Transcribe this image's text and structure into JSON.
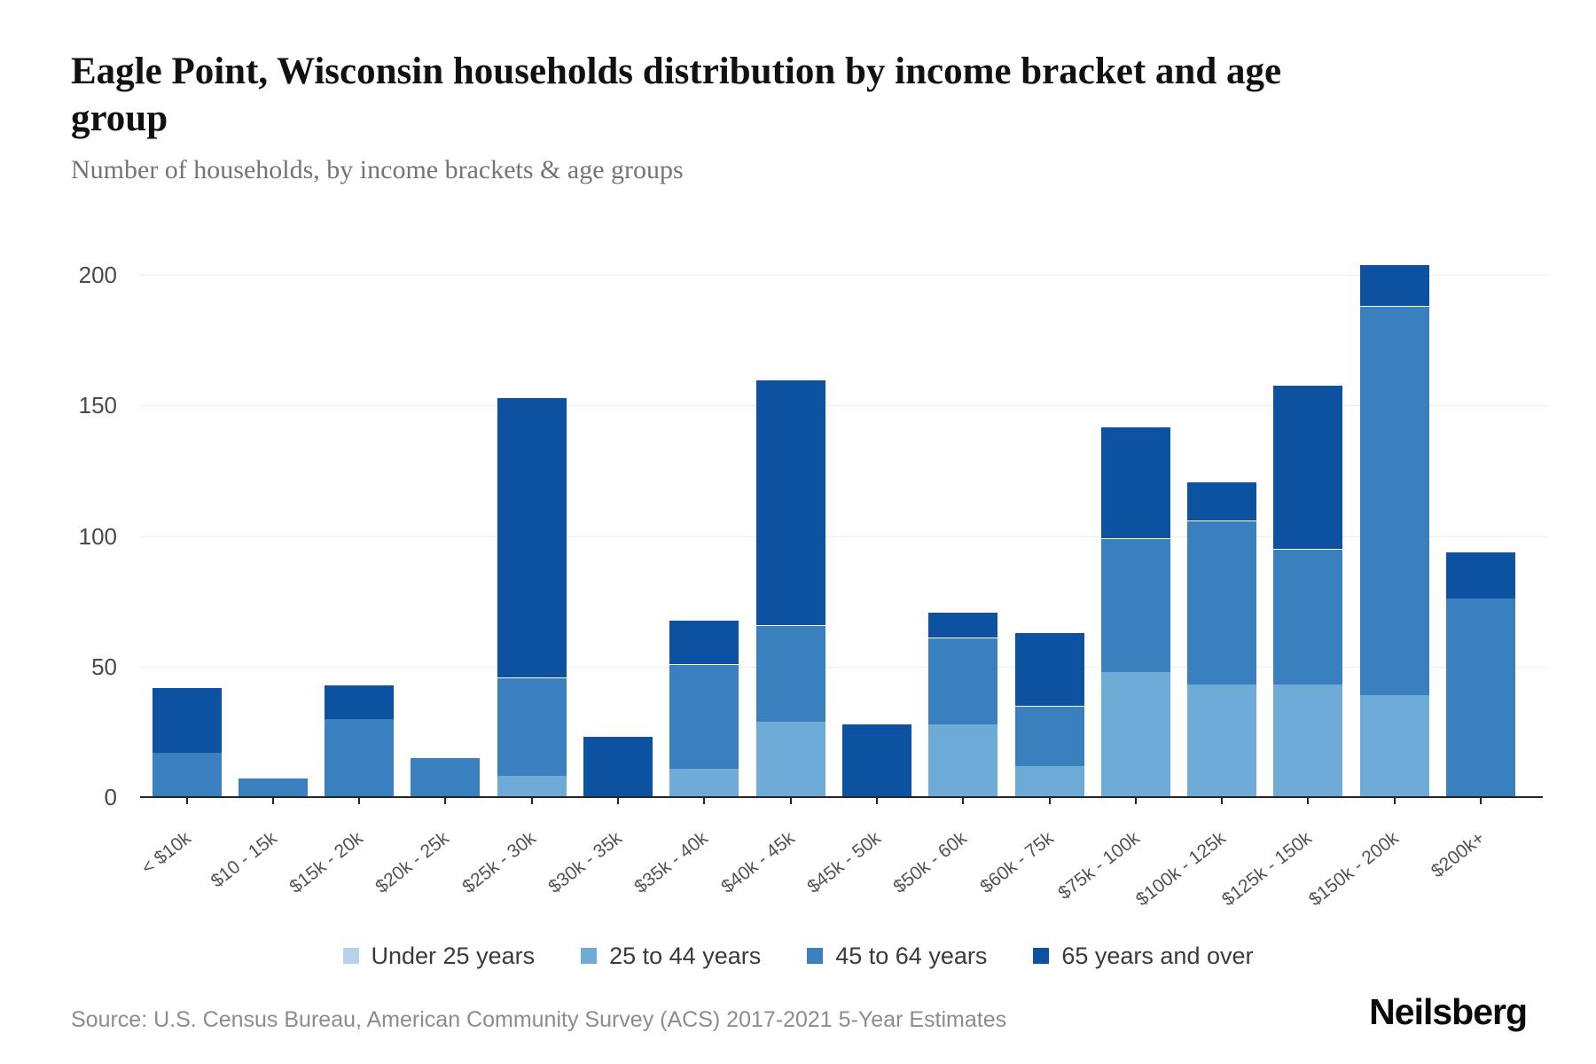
{
  "title": "Eagle Point, Wisconsin households distribution by income bracket and age group",
  "subtitle": "Number of households, by income brackets & age groups",
  "source": "Source: U.S. Census Bureau, American Community Survey (ACS) 2017-2021 5-Year Estimates",
  "brand": "Neilsberg",
  "colors": {
    "axis": "#252525",
    "gridline": "#ececec",
    "under_25": "#b7d3e9",
    "age_25_44": "#6fabd7",
    "age_45_64": "#3a80bf",
    "age_65_over": "#0d51a1"
  },
  "chart_data": {
    "type": "bar",
    "stacked": true,
    "title": "Eagle Point, Wisconsin households distribution by income bracket and age group",
    "xlabel": "",
    "ylabel": "Number of households",
    "ylim": [
      0,
      200
    ],
    "yticks": [
      0,
      50,
      100,
      150,
      200
    ],
    "grid": true,
    "legend_position": "bottom",
    "categories": [
      "< $10k",
      "$10 - 15k",
      "$15k - 20k",
      "$20k - 25k",
      "$25k - 30k",
      "$30k - 35k",
      "$35k - 40k",
      "$40k - 45k",
      "$45k - 50k",
      "$50k - 60k",
      "$60k - 75k",
      "$75k - 100k",
      "$100k - 125k",
      "$125k - 150k",
      "$150k - 200k",
      "$200k+"
    ],
    "series": [
      {
        "name": "Under 25 years",
        "color": "#b7d3e9",
        "values": [
          0,
          0,
          0,
          0,
          0,
          0,
          0,
          0,
          0,
          0,
          0,
          0,
          0,
          0,
          0,
          0
        ]
      },
      {
        "name": "25 to 44 years",
        "color": "#6fabd7",
        "values": [
          0,
          0,
          0,
          0,
          8,
          0,
          11,
          29,
          0,
          28,
          12,
          48,
          43,
          43,
          39,
          0
        ]
      },
      {
        "name": "45 to 64 years",
        "color": "#3a80bf",
        "values": [
          17,
          7,
          30,
          15,
          38,
          0,
          40,
          37,
          0,
          33,
          23,
          51,
          63,
          52,
          149,
          76
        ]
      },
      {
        "name": "65 years and over",
        "color": "#0d51a1",
        "values": [
          25,
          0,
          13,
          0,
          107,
          23,
          17,
          94,
          28,
          10,
          28,
          43,
          15,
          63,
          16,
          18
        ]
      }
    ],
    "totals": [
      42,
      7,
      43,
      15,
      153,
      23,
      68,
      160,
      28,
      71,
      63,
      142,
      121,
      158,
      204,
      94
    ]
  }
}
